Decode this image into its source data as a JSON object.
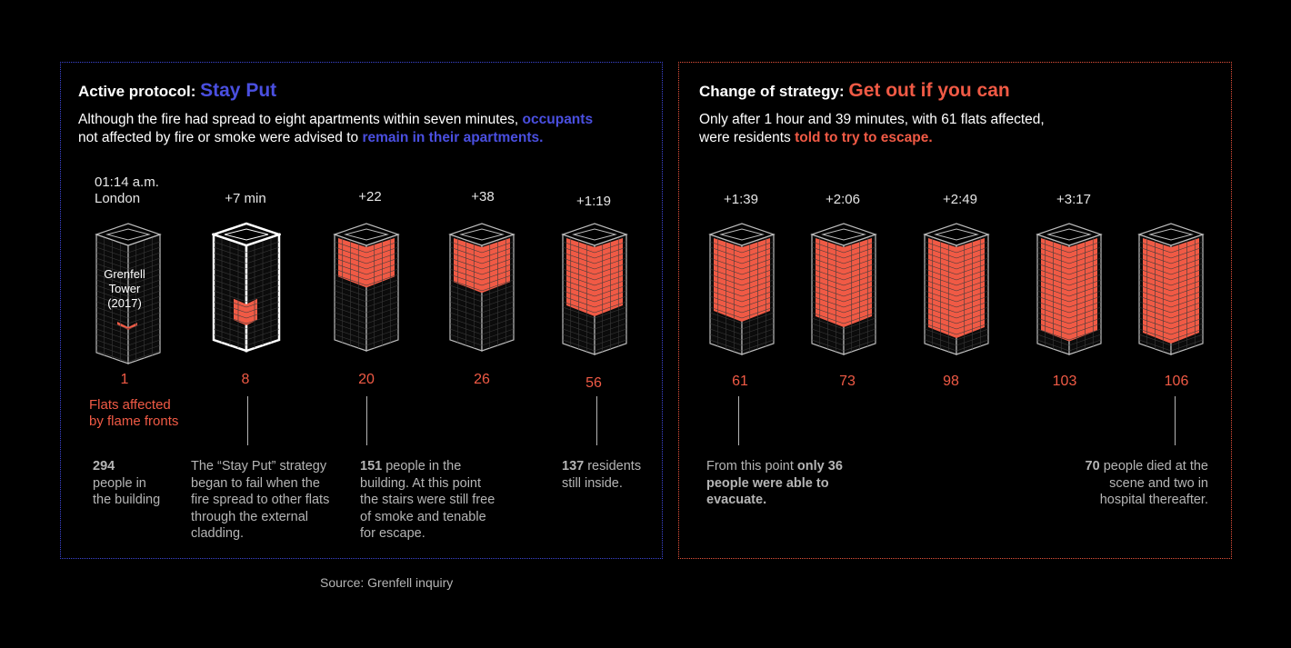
{
  "colors": {
    "blue": "#4a4fe0",
    "red": "#f05a45",
    "grey": "#b5b5b5"
  },
  "left": {
    "title_prefix": "Active protocol: ",
    "title_highlight": "Stay Put",
    "intro_1a": "Although the fire had spread to eight apartments within seven minutes, ",
    "intro_1b": "occupants",
    "intro_2a": "not affected by fire or smoke were advised to ",
    "intro_2b": "remain in their apartments."
  },
  "right": {
    "title_prefix": "Change of strategy: ",
    "title_highlight": "Get out if you can",
    "intro_1": "Only after 1 hour and 39 minutes, with 61 flats affected,",
    "intro_2a": "were residents ",
    "intro_2b": "told to try to escape."
  },
  "towers": [
    {
      "time": "01:14 a.m.",
      "time2": "London",
      "count": "1",
      "fill": 0.03,
      "label_lines": [
        "Grenfell",
        "Tower",
        "(2017)"
      ]
    },
    {
      "time": "+7 min",
      "count": "8",
      "fill": 0.2
    },
    {
      "time": "+22",
      "count": "20",
      "fill": 0.4
    },
    {
      "time": "+38",
      "count": "26",
      "fill": 0.45
    },
    {
      "time": "+1:19",
      "count": "56",
      "fill": 0.65
    },
    {
      "time": "+1:39",
      "count": "61",
      "fill": 0.7
    },
    {
      "time": "+2:06",
      "count": "73",
      "fill": 0.75
    },
    {
      "time": "+2:49",
      "count": "98",
      "fill": 0.85
    },
    {
      "time": "+3:17",
      "count": "103",
      "fill": 0.88
    },
    {
      "time": "",
      "count": "106",
      "fill": 0.9
    }
  ],
  "legend": [
    "Flats affected",
    "by flame fronts"
  ],
  "notes": {
    "n1_bold": "294",
    "n1_lines": [
      "people in",
      "the building"
    ],
    "n2_lines": [
      "The “Stay Put” strategy",
      "began to fail when the",
      "fire spread to other flats",
      "through the external",
      "cladding."
    ],
    "n3_bold": "151",
    "n3_first": " people in the",
    "n3_lines": [
      "building. At this point",
      "the stairs were still free",
      "of smoke and tenable",
      "for escape."
    ],
    "n4_bold": "137",
    "n4_first": " residents",
    "n4_lines": [
      "still inside."
    ],
    "n5_first": "From this point ",
    "n5_bold1": "only 36",
    "n5_bold2": "people were able to",
    "n5_bold3": "evacuate.",
    "n6_bold": "70",
    "n6_first": " people died at the",
    "n6_lines": [
      "scene and two in",
      "hospital thereafter."
    ]
  },
  "source": "Source: Grenfell inquiry"
}
